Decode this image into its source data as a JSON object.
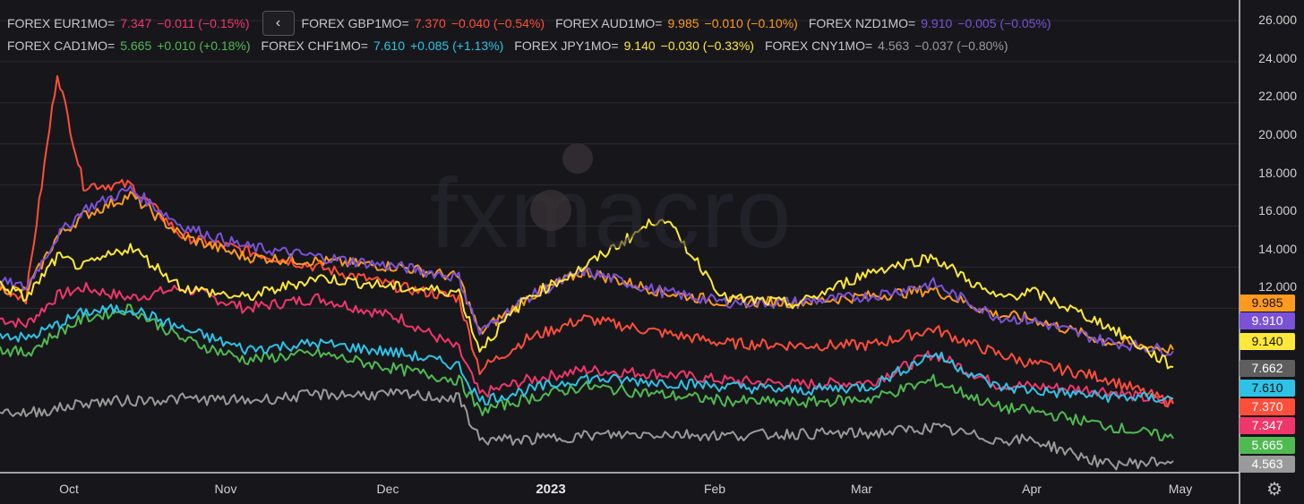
{
  "legend": [
    {
      "name": "FOREX EUR1MO=",
      "value": "7.347",
      "change": "−0.011 (−0.15%)",
      "color": "#f0366a"
    },
    {
      "name": "FOREX GBP1MO=",
      "value": "7.370",
      "change": "−0.040 (−0.54%)",
      "color": "#ff4e3a"
    },
    {
      "name": "FOREX AUD1MO=",
      "value": "9.985",
      "change": "−0.010 (−0.10%)",
      "color": "#ff9a1f"
    },
    {
      "name": "FOREX NZD1MO=",
      "value": "9.910",
      "change": "−0.005 (−0.05%)",
      "color": "#7a52d8"
    },
    {
      "name": "FOREX CAD1MO=",
      "value": "5.665",
      "change": "+0.010 (+0.18%)",
      "color": "#4fba51"
    },
    {
      "name": "FOREX CHF1MO=",
      "value": "7.610",
      "change": "+0.085 (+1.13%)",
      "color": "#2ec3e6"
    },
    {
      "name": "FOREX JPY1MO=",
      "value": "9.140",
      "change": "−0.030 (−0.33%)",
      "color": "#ffe83a"
    },
    {
      "name": "FOREX CNY1MO=",
      "value": "4.563",
      "change": "−0.037 (−0.80%)",
      "color": "#9a9a9a"
    }
  ],
  "collapse_glyph": "‹",
  "watermark": "fxmacro",
  "y_ticks": [
    "26.000",
    "24.000",
    "22.000",
    "20.000",
    "18.000",
    "16.000",
    "14.000",
    "12.000"
  ],
  "tags": [
    {
      "label": "9.985",
      "bg": "#ff9a1f",
      "fg": "#111"
    },
    {
      "label": "9.910",
      "bg": "#7a52d8",
      "fg": "#fff"
    },
    {
      "label": "9.140",
      "bg": "#ffe83a",
      "fg": "#111"
    },
    {
      "label": "7.662",
      "bg": "#5e5e5e",
      "fg": "#fff"
    },
    {
      "label": "7.610",
      "bg": "#2ec3e6",
      "fg": "#111"
    },
    {
      "label": "7.370",
      "bg": "#ff4e3a",
      "fg": "#fff"
    },
    {
      "label": "7.347",
      "bg": "#f0366a",
      "fg": "#fff"
    },
    {
      "label": "5.665",
      "bg": "#4fba51",
      "fg": "#fff"
    },
    {
      "label": "4.563",
      "bg": "#9a9a9a",
      "fg": "#fff"
    }
  ],
  "x_ticks": [
    {
      "label": "Oct",
      "year": false
    },
    {
      "label": "Nov",
      "year": false
    },
    {
      "label": "Dec",
      "year": false
    },
    {
      "label": "2023",
      "year": true
    },
    {
      "label": "Feb",
      "year": false
    },
    {
      "label": "Mar",
      "year": false
    },
    {
      "label": "Apr",
      "year": false
    },
    {
      "label": "May",
      "year": false
    }
  ],
  "settings_icon": "⚙",
  "chart_data": {
    "type": "line",
    "x_dates": [
      "2022-09-15",
      "2022-09-20",
      "2022-09-26",
      "2022-10-01",
      "2022-10-10",
      "2022-10-20",
      "2022-11-01",
      "2022-11-15",
      "2022-12-01",
      "2022-12-12",
      "2022-12-16",
      "2022-12-25",
      "2023-01-05",
      "2023-01-20",
      "2023-02-01",
      "2023-02-15",
      "2023-03-01",
      "2023-03-13",
      "2023-03-25",
      "2023-04-01",
      "2023-04-15",
      "2023-04-28"
    ],
    "ylim": [
      4,
      27
    ],
    "series": [
      {
        "name": "FOREX EUR1MO=",
        "color": "#f0366a",
        "values": [
          11.5,
          11.2,
          12.6,
          13.0,
          12.5,
          13.0,
          12.0,
          12.5,
          11.5,
          10.0,
          7.8,
          8.5,
          9.0,
          8.8,
          8.5,
          8.3,
          8.4,
          9.8,
          8.3,
          8.2,
          8.0,
          7.35
        ]
      },
      {
        "name": "FOREX GBP1MO=",
        "color": "#ff4e3a",
        "values": [
          13.0,
          12.5,
          23.5,
          18.0,
          18.0,
          15.5,
          14.8,
          14.0,
          13.0,
          12.5,
          9.0,
          10.5,
          11.5,
          10.8,
          10.3,
          10.2,
          10.2,
          11.0,
          9.8,
          9.3,
          8.6,
          7.37
        ]
      },
      {
        "name": "FOREX AUD1MO=",
        "color": "#ff9a1f",
        "values": [
          13.0,
          12.8,
          15.5,
          16.5,
          17.5,
          15.5,
          14.5,
          14.3,
          14.0,
          13.5,
          10.8,
          12.5,
          13.8,
          12.8,
          12.3,
          12.3,
          12.6,
          12.9,
          11.7,
          11.5,
          10.4,
          9.985
        ]
      },
      {
        "name": "FOREX NZD1MO=",
        "color": "#7a52d8",
        "values": [
          13.3,
          13.0,
          15.5,
          16.8,
          17.8,
          16.0,
          15.0,
          14.5,
          14.0,
          13.5,
          10.8,
          12.5,
          13.8,
          12.8,
          12.3,
          12.3,
          12.6,
          13.2,
          11.6,
          11.4,
          10.4,
          9.91
        ]
      },
      {
        "name": "FOREX CAD1MO=",
        "color": "#4fba51",
        "values": [
          10.0,
          9.8,
          10.8,
          11.5,
          12.0,
          10.5,
          9.5,
          9.8,
          9.0,
          8.5,
          7.0,
          7.6,
          8.2,
          7.8,
          7.5,
          7.4,
          7.6,
          8.5,
          7.2,
          7.0,
          6.3,
          5.665
        ]
      },
      {
        "name": "FOREX CHF1MO=",
        "color": "#2ec3e6",
        "values": [
          10.8,
          10.5,
          11.2,
          11.8,
          12.0,
          11.0,
          10.0,
          10.3,
          9.8,
          9.2,
          7.5,
          8.0,
          8.6,
          8.4,
          8.2,
          8.0,
          8.2,
          9.8,
          8.2,
          8.0,
          7.7,
          7.61
        ]
      },
      {
        "name": "FOREX JPY1MO=",
        "color": "#ffe83a",
        "values": [
          13.2,
          12.5,
          14.5,
          14.0,
          15.0,
          13.0,
          12.5,
          13.5,
          13.0,
          12.8,
          10.0,
          12.5,
          14.0,
          16.5,
          12.5,
          12.2,
          13.8,
          14.5,
          12.5,
          12.8,
          11.2,
          9.14
        ]
      },
      {
        "name": "FOREX CNY1MO=",
        "color": "#9a9a9a",
        "values": [
          7.0,
          6.9,
          7.1,
          7.4,
          7.5,
          7.6,
          7.5,
          7.8,
          7.8,
          7.6,
          5.6,
          5.6,
          5.8,
          5.9,
          5.8,
          5.9,
          5.9,
          6.2,
          5.6,
          5.6,
          4.4,
          4.563
        ]
      }
    ]
  }
}
